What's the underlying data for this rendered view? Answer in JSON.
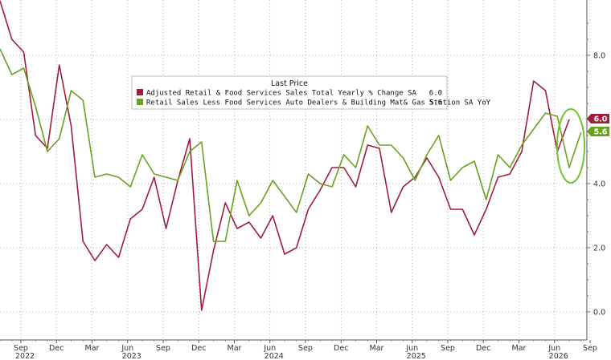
{
  "chart_data": {
    "type": "line",
    "title": "",
    "xlabel": "",
    "ylabel": "",
    "ylim": [
      -0.8,
      9.6
    ],
    "yticks": [
      "0.0",
      "2.0",
      "4.0",
      "6.0",
      "8.0"
    ],
    "x_tick_labels": [
      {
        "month": "Sep",
        "year": "2022"
      },
      {
        "month": "Dec",
        "year": ""
      },
      {
        "month": "Mar",
        "year": ""
      },
      {
        "month": "Jun",
        "year": "2023"
      },
      {
        "month": "Sep",
        "year": ""
      },
      {
        "month": "Dec",
        "year": ""
      },
      {
        "month": "Mar",
        "year": ""
      },
      {
        "month": "Jun",
        "year": "2024"
      },
      {
        "month": "Sep",
        "year": ""
      },
      {
        "month": "Dec",
        "year": ""
      },
      {
        "month": "Mar",
        "year": ""
      },
      {
        "month": "Jun",
        "year": "2025"
      },
      {
        "month": "Sep",
        "year": ""
      },
      {
        "month": "Dec",
        "year": ""
      },
      {
        "month": "Mar",
        "year": ""
      },
      {
        "month": "Jun",
        "year": "2026"
      },
      {
        "month": "Sep",
        "year": ""
      }
    ],
    "grid": true,
    "legend": {
      "title": "Last Price",
      "placement": "top-center",
      "entries": [
        {
          "label": "Adjusted Retail & Food Services Sales Total Yearly % Change SA",
          "last_value": "6.0",
          "color": "#a01d3c"
        },
        {
          "label": "Retail Sales Less Food Services Auto Dealers & Building Mat& Gas Station SA YoY",
          "last_value": "5.6",
          "color": "#6aa121"
        }
      ]
    },
    "series": [
      {
        "name": "Adjusted Retail & Food Services Sales Total Yearly % Change SA",
        "color": "#a01d3c",
        "last_value_label": "6.0",
        "values": [
          9.7,
          8.5,
          8.1,
          5.5,
          5.1,
          7.7,
          5.8,
          2.2,
          1.6,
          2.1,
          1.7,
          2.9,
          3.2,
          4.2,
          2.6,
          4.1,
          5.4,
          0.05,
          1.9,
          3.4,
          2.6,
          2.8,
          2.3,
          3.0,
          1.8,
          2.0,
          3.2,
          3.8,
          4.5,
          4.5,
          3.9,
          5.2,
          5.1,
          3.1,
          3.9,
          4.2,
          4.8,
          4.2,
          3.2,
          3.2,
          2.4,
          3.2,
          4.2,
          4.3,
          5.0,
          7.2,
          6.9,
          5.0,
          6.0
        ]
      },
      {
        "name": "Retail Sales Less Food Services Auto Dealers & Building Mat& Gas Station SA YoY",
        "color": "#6aa121",
        "last_value_label": "5.6",
        "values": [
          8.2,
          7.4,
          7.6,
          6.4,
          5.0,
          5.4,
          6.9,
          6.6,
          4.2,
          4.3,
          4.2,
          3.9,
          4.9,
          4.3,
          4.2,
          4.1,
          5.0,
          5.3,
          2.2,
          2.2,
          4.1,
          3.0,
          3.4,
          4.1,
          3.6,
          3.1,
          4.3,
          4.0,
          3.9,
          4.9,
          4.5,
          5.8,
          5.2,
          5.2,
          4.8,
          4.1,
          4.9,
          5.5,
          4.1,
          4.5,
          4.7,
          3.5,
          4.9,
          4.5,
          5.2,
          5.7,
          6.2,
          6.1,
          4.5,
          5.6
        ]
      }
    ],
    "annotation": {
      "shape": "ellipse",
      "color": "#6fc52e",
      "around": "last four points of both series"
    }
  }
}
